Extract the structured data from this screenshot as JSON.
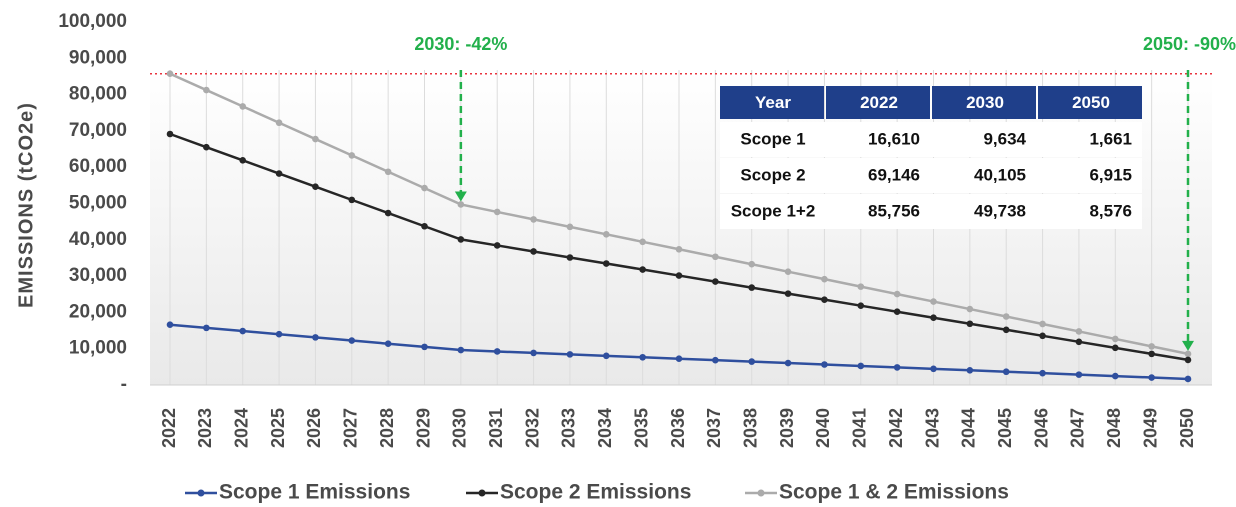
{
  "chart_data": {
    "type": "line",
    "y_axis_label": "EMISSIONS (tCO2e)",
    "categories": [
      "2022",
      "2023",
      "2024",
      "2025",
      "2026",
      "2027",
      "2028",
      "2029",
      "2030",
      "2031",
      "2032",
      "2033",
      "2034",
      "2035",
      "2036",
      "2037",
      "2038",
      "2039",
      "2040",
      "2041",
      "2042",
      "2043",
      "2044",
      "2045",
      "2046",
      "2047",
      "2048",
      "2049",
      "2050"
    ],
    "series": [
      {
        "name": "Scope 1 Emissions",
        "color": "#2f4f9e",
        "values": [
          16610,
          15738,
          14866,
          13994,
          13122,
          12250,
          11378,
          10506,
          9634,
          9235,
          8837,
          8438,
          8040,
          7641,
          7242,
          6844,
          6445,
          6046,
          5648,
          5249,
          4851,
          4452,
          4053,
          3655,
          3256,
          2857,
          2459,
          2060,
          1661
        ]
      },
      {
        "name": "Scope 2 Emissions",
        "color": "#262626",
        "values": [
          69146,
          65516,
          61886,
          58256,
          54626,
          50996,
          47366,
          43736,
          40105,
          38446,
          36786,
          35127,
          33467,
          31808,
          30148,
          28489,
          26829,
          25170,
          23510,
          21851,
          20191,
          18532,
          16872,
          15213,
          13553,
          11894,
          10234,
          8575,
          6915
        ]
      },
      {
        "name": "Scope 1 & 2 Emissions",
        "color": "#ababab",
        "values": [
          85756,
          81254,
          76752,
          72250,
          67748,
          63246,
          58744,
          54242,
          49738,
          47681,
          45623,
          43565,
          41507,
          39449,
          37390,
          35333,
          33274,
          31216,
          29158,
          27100,
          25042,
          22984,
          20925,
          18868,
          16809,
          14751,
          12693,
          10635,
          8576
        ]
      }
    ],
    "ylim": [
      0,
      100000
    ],
    "yticks": [
      {
        "value": 0,
        "label": "-"
      },
      {
        "value": 10000,
        "label": "10,000"
      },
      {
        "value": 20000,
        "label": "20,000"
      },
      {
        "value": 30000,
        "label": "30,000"
      },
      {
        "value": 40000,
        "label": "40,000"
      },
      {
        "value": 50000,
        "label": "50,000"
      },
      {
        "value": 60000,
        "label": "60,000"
      },
      {
        "value": 70000,
        "label": "70,000"
      },
      {
        "value": 80000,
        "label": "80,000"
      },
      {
        "value": 90000,
        "label": "90,000"
      },
      {
        "value": 100000,
        "label": "100,000"
      }
    ],
    "grid": true,
    "reference_line": {
      "value": 85756,
      "color": "#e8343f"
    },
    "annotations": [
      {
        "text": "2030: -42%",
        "x": "2030",
        "color": "#22b04b"
      },
      {
        "text": "2050: -90%",
        "x": "2050",
        "color": "#22b04b"
      }
    ],
    "table": {
      "columns": [
        "Year",
        "2022",
        "2030",
        "2050"
      ],
      "rows": [
        [
          "Scope 1",
          "16,610",
          "9,634",
          "1,661"
        ],
        [
          "Scope 2",
          "69,146",
          "40,105",
          "6,915"
        ],
        [
          "Scope 1+2",
          "85,756",
          "49,738",
          "8,576"
        ]
      ]
    }
  }
}
